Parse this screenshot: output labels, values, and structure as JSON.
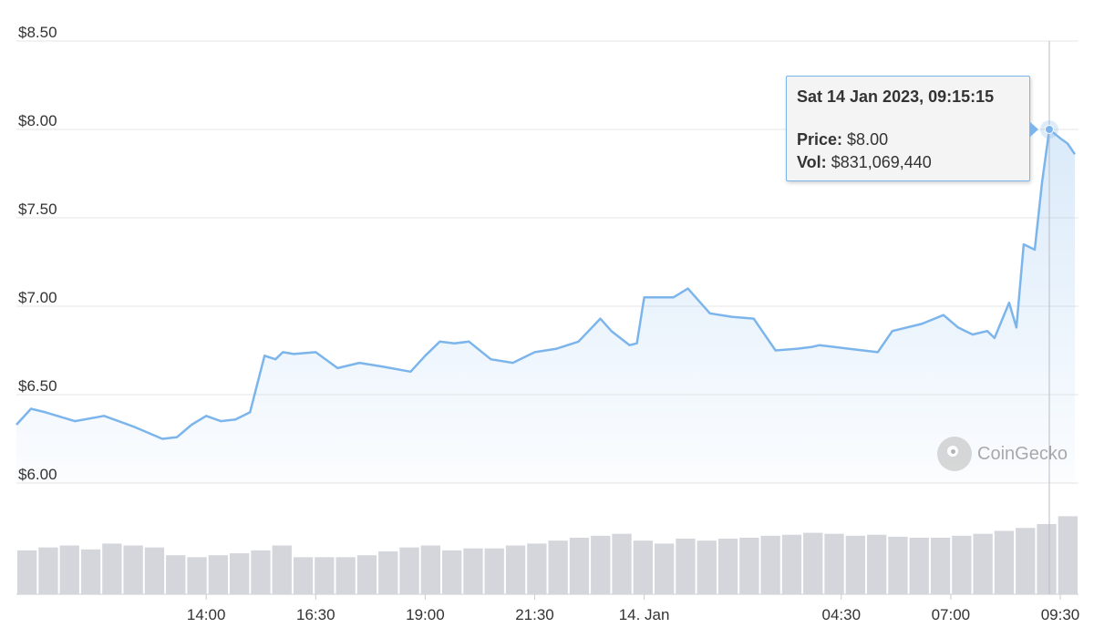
{
  "chart_data": {
    "type": "line",
    "title": "",
    "xlabel": "",
    "ylabel": "",
    "ylim": [
      6.0,
      8.5
    ],
    "yticks": [
      "$8.50",
      "$8.00",
      "$7.50",
      "$7.00",
      "$6.50",
      "$6.00"
    ],
    "yticks_values": [
      8.5,
      8.0,
      7.5,
      7.0,
      6.5,
      6.0
    ],
    "xticks": [
      "14:00",
      "16:30",
      "19:00",
      "21:30",
      "14. Jan",
      "04:30",
      "07:00",
      "09:30"
    ],
    "grid": true,
    "legend": "none",
    "x_start": "13 Jan 2023 09:40",
    "x_end": "14 Jan 2023 09:55",
    "series": [
      {
        "name": "Price",
        "color": "#7cb5ec",
        "x": [
          "13 Jan 09:40",
          "13 Jan 10:00",
          "13 Jan 10:20",
          "13 Jan 11:00",
          "13 Jan 11:40",
          "13 Jan 12:20",
          "13 Jan 13:00",
          "13 Jan 13:20",
          "13 Jan 13:40",
          "13 Jan 14:00",
          "13 Jan 14:20",
          "13 Jan 14:40",
          "13 Jan 15:00",
          "13 Jan 15:20",
          "13 Jan 15:35",
          "13 Jan 15:45",
          "13 Jan 16:00",
          "13 Jan 16:30",
          "13 Jan 17:00",
          "13 Jan 17:30",
          "13 Jan 18:00",
          "13 Jan 18:40",
          "13 Jan 19:00",
          "13 Jan 19:20",
          "13 Jan 19:40",
          "13 Jan 20:00",
          "13 Jan 20:30",
          "13 Jan 21:00",
          "13 Jan 21:30",
          "13 Jan 22:00",
          "13 Jan 22:30",
          "13 Jan 23:00",
          "13 Jan 23:15",
          "13 Jan 23:40",
          "13 Jan 23:50",
          "14 Jan 00:00",
          "14 Jan 00:40",
          "14 Jan 01:00",
          "14 Jan 01:30",
          "14 Jan 02:00",
          "14 Jan 02:30",
          "14 Jan 03:00",
          "14 Jan 03:30",
          "14 Jan 03:50",
          "14 Jan 04:00",
          "14 Jan 04:20",
          "14 Jan 04:40",
          "14 Jan 05:00",
          "14 Jan 05:20",
          "14 Jan 05:40",
          "14 Jan 06:20",
          "14 Jan 06:50",
          "14 Jan 07:10",
          "14 Jan 07:20",
          "14 Jan 07:30",
          "14 Jan 07:50",
          "14 Jan 08:00",
          "14 Jan 08:20",
          "14 Jan 08:30",
          "14 Jan 08:40",
          "14 Jan 08:55",
          "14 Jan 09:05",
          "14 Jan 09:15",
          "14 Jan 09:30",
          "14 Jan 09:40",
          "14 Jan 09:50"
        ],
        "values": [
          6.33,
          6.42,
          6.4,
          6.35,
          6.38,
          6.32,
          6.25,
          6.26,
          6.33,
          6.38,
          6.35,
          6.36,
          6.4,
          6.72,
          6.7,
          6.74,
          6.73,
          6.74,
          6.65,
          6.68,
          6.66,
          6.63,
          6.72,
          6.8,
          6.79,
          6.8,
          6.7,
          6.68,
          6.74,
          6.76,
          6.8,
          6.93,
          6.86,
          6.78,
          6.79,
          7.05,
          7.05,
          7.1,
          6.96,
          6.94,
          6.93,
          6.75,
          6.76,
          6.77,
          6.78,
          6.77,
          6.76,
          6.75,
          6.74,
          6.86,
          6.9,
          6.95,
          6.88,
          6.86,
          6.84,
          6.86,
          6.82,
          7.02,
          6.88,
          7.35,
          7.32,
          7.7,
          8.0,
          7.95,
          7.92,
          7.86
        ]
      }
    ],
    "volume": {
      "unit": "relative",
      "values": [
        0.45,
        0.48,
        0.5,
        0.46,
        0.52,
        0.5,
        0.48,
        0.4,
        0.38,
        0.4,
        0.42,
        0.45,
        0.5,
        0.38,
        0.38,
        0.38,
        0.4,
        0.44,
        0.48,
        0.5,
        0.45,
        0.47,
        0.47,
        0.5,
        0.52,
        0.55,
        0.58,
        0.6,
        0.62,
        0.55,
        0.52,
        0.57,
        0.55,
        0.57,
        0.58,
        0.6,
        0.61,
        0.63,
        0.62,
        0.6,
        0.61,
        0.59,
        0.58,
        0.58,
        0.6,
        0.62,
        0.65,
        0.68,
        0.72,
        0.8
      ]
    },
    "tooltip": {
      "date": "Sat 14 Jan 2023, 09:15:15",
      "price_label": "Price:",
      "price_value": "$8.00",
      "vol_label": "Vol:",
      "vol_value": "$831,069,440"
    },
    "watermark": "CoinGecko"
  }
}
